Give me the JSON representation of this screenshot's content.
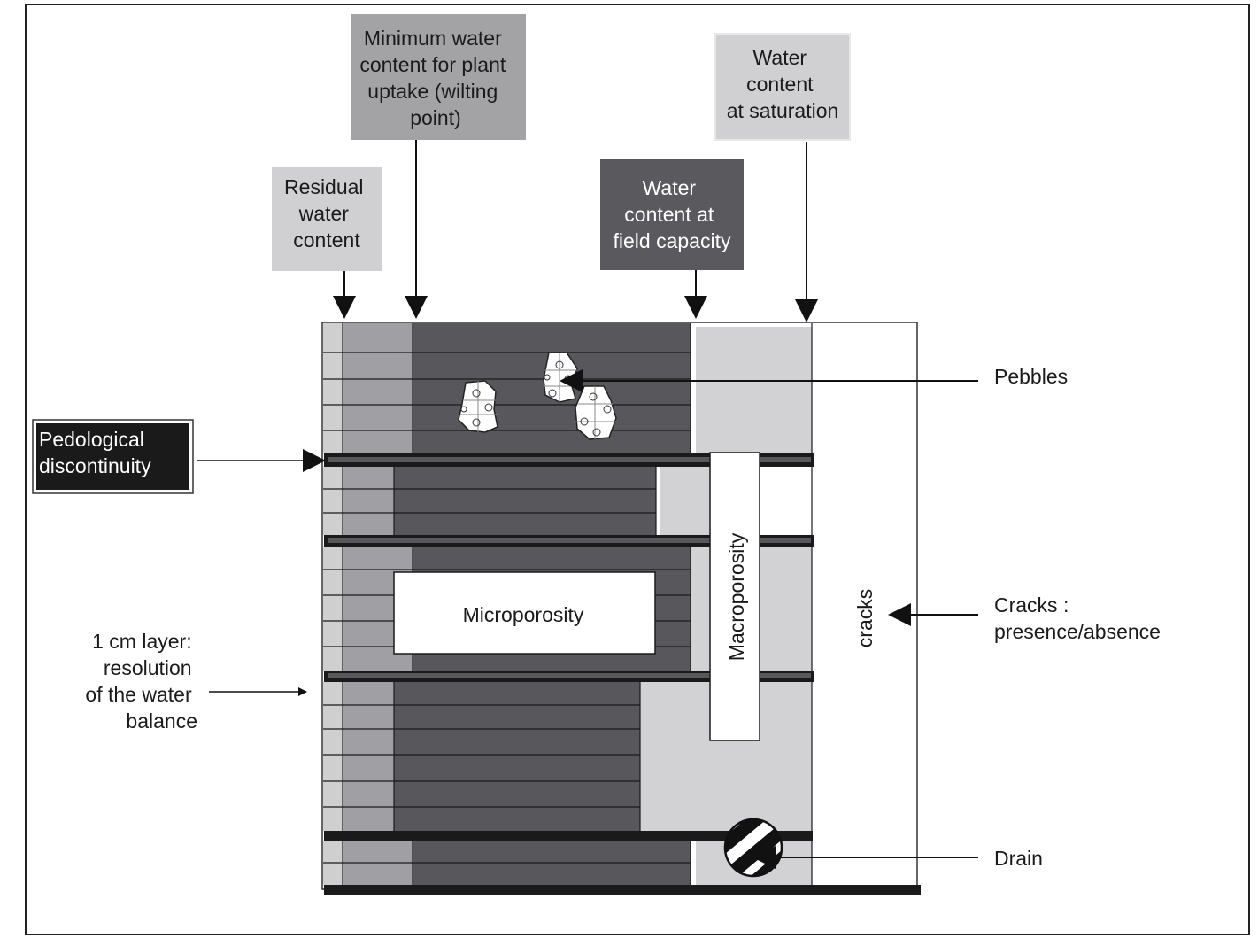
{
  "labels": {
    "residual": [
      "Residual",
      "water",
      "content"
    ],
    "wilting": [
      "Minimum water",
      "content for plant",
      "uptake (wilting",
      "point)"
    ],
    "field_capacity": [
      "Water",
      "content at",
      "field capacity"
    ],
    "saturation": [
      "Water",
      "content",
      "at saturation"
    ],
    "pedological": [
      "Pedological",
      "discontinuity"
    ],
    "layer": [
      "1 cm layer:",
      "resolution",
      "of the water",
      "balance"
    ],
    "pebbles": "Pebbles",
    "cracks_right": [
      "Cracks :",
      "presence/absence"
    ],
    "drain": "Drain",
    "microporosity": "Microporosity",
    "macroporosity": "Macroporosity",
    "cracks_vertical": "cracks"
  },
  "colors": {
    "residual": "#cfcfcf",
    "between": "#a0a0a4",
    "dark": "#58585c",
    "saturation": "#d2d2d4",
    "black": "#1a1a1a",
    "wilting_box": "#a3a3a6",
    "field_box": "#5a5a5e",
    "light_box": "#d0d0d2"
  }
}
